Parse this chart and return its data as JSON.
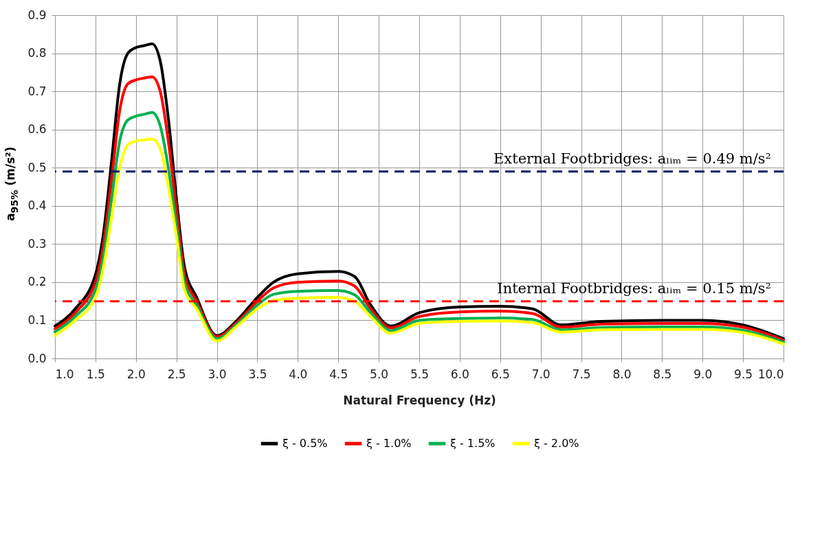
{
  "chart_data": {
    "type": "line",
    "xlabel": "Natural Frequency (Hz)",
    "ylabel": "a$_{95%}$ (m/s²)",
    "x": [
      1.0,
      1.25,
      1.5,
      1.6,
      1.7,
      1.8,
      1.9,
      2.0,
      2.1,
      2.2,
      2.3,
      2.4,
      2.5,
      2.6,
      2.75,
      3.0,
      3.25,
      3.5,
      3.7,
      4.0,
      4.5,
      4.7,
      4.9,
      5.15,
      5.5,
      6.0,
      6.5,
      6.9,
      7.25,
      7.75,
      8.5,
      9.0,
      9.5,
      10.0
    ],
    "series": [
      {
        "name": "ξ - 0.5%",
        "color": "#000000",
        "values": [
          0.085,
          0.13,
          0.22,
          0.33,
          0.52,
          0.72,
          0.8,
          0.815,
          0.82,
          0.825,
          0.78,
          0.63,
          0.42,
          0.24,
          0.16,
          0.06,
          0.1,
          0.16,
          0.2,
          0.222,
          0.228,
          0.215,
          0.14,
          0.085,
          0.12,
          0.135,
          0.137,
          0.13,
          0.088,
          0.097,
          0.1,
          0.1,
          0.088,
          0.052
        ]
      },
      {
        "name": "ξ - 1.0%",
        "color": "#ff0000",
        "values": [
          0.078,
          0.12,
          0.2,
          0.3,
          0.47,
          0.65,
          0.72,
          0.73,
          0.735,
          0.738,
          0.7,
          0.57,
          0.39,
          0.22,
          0.15,
          0.057,
          0.095,
          0.15,
          0.185,
          0.2,
          0.203,
          0.19,
          0.13,
          0.08,
          0.11,
          0.122,
          0.124,
          0.118,
          0.082,
          0.09,
          0.092,
          0.092,
          0.082,
          0.048
        ]
      },
      {
        "name": "ξ - 1.5%",
        "color": "#00b050",
        "values": [
          0.07,
          0.11,
          0.18,
          0.27,
          0.42,
          0.57,
          0.625,
          0.635,
          0.64,
          0.645,
          0.61,
          0.5,
          0.35,
          0.2,
          0.14,
          0.052,
          0.09,
          0.14,
          0.168,
          0.176,
          0.178,
          0.167,
          0.12,
          0.073,
          0.1,
          0.105,
          0.106,
          0.102,
          0.075,
          0.081,
          0.083,
          0.083,
          0.074,
          0.043
        ]
      },
      {
        "name": "ξ - 2.0%",
        "color": "#ffff00",
        "values": [
          0.06,
          0.1,
          0.16,
          0.24,
          0.37,
          0.5,
          0.56,
          0.57,
          0.573,
          0.575,
          0.55,
          0.45,
          0.32,
          0.18,
          0.13,
          0.046,
          0.085,
          0.13,
          0.152,
          0.158,
          0.16,
          0.15,
          0.11,
          0.066,
          0.092,
          0.097,
          0.098,
          0.094,
          0.069,
          0.075,
          0.076,
          0.076,
          0.068,
          0.038
        ]
      }
    ],
    "xlim": [
      1,
      10
    ],
    "xticks": [
      {
        "value": 1,
        "label": "1.0"
      },
      1.5,
      {
        "value": 2,
        "label": "2.0"
      },
      2.5,
      {
        "value": 3,
        "label": "3.0"
      },
      3.5,
      {
        "value": 4,
        "label": "4.0"
      },
      4.5,
      {
        "value": 5,
        "label": "5.0"
      },
      5.5,
      {
        "value": 6,
        "label": "6.0"
      },
      6.5,
      {
        "value": 7,
        "label": "7.0"
      },
      7.5,
      {
        "value": 8,
        "label": "8.0"
      },
      8.5,
      {
        "value": 9,
        "label": "9.0"
      },
      9.5,
      {
        "value": 10,
        "label": "10.0"
      }
    ],
    "ylim": [
      0,
      0.9
    ],
    "yticks": [
      {
        "value": 0,
        "label": "0.0"
      },
      0.1,
      0.2,
      0.3,
      0.4,
      0.5,
      0.6,
      0.7,
      0.8,
      0.9
    ],
    "ref_lines": [
      {
        "axis": "y",
        "value": 0.49,
        "label": "External Footbridges: aₗᵢₘ = 0.49 m/s²",
        "color": "#002060",
        "line_style": "dashed"
      },
      {
        "axis": "y",
        "value": 0.15,
        "label": "Internal Footbridges: aₗᵢₘ = 0.15 m/s²",
        "color": "#ff0000",
        "line_style": "dashed"
      }
    ],
    "grid": true,
    "legend": "bottom"
  }
}
